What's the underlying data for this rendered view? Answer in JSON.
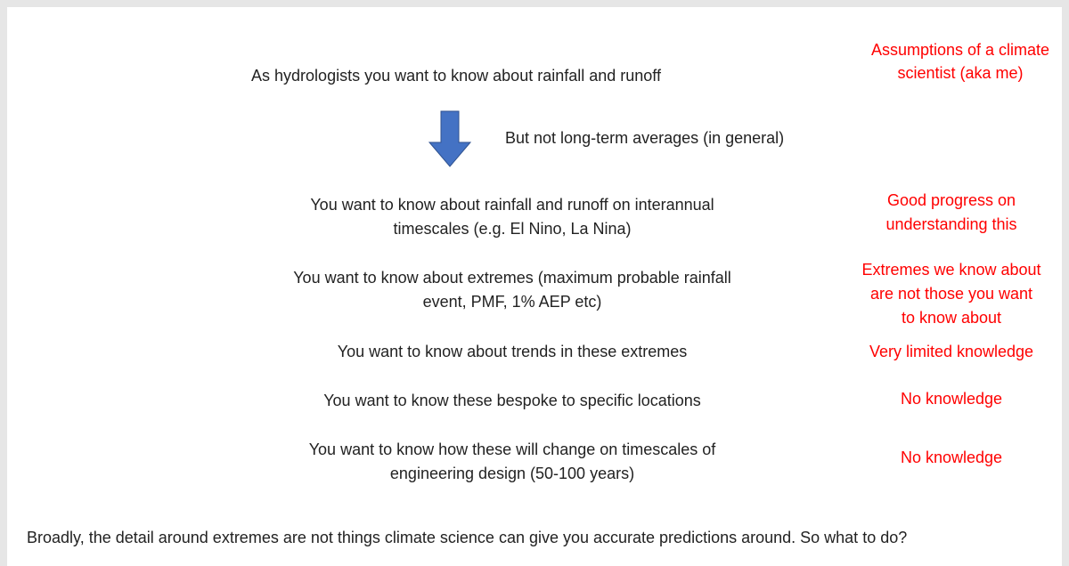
{
  "intro": "As hydrologists you want to know about rainfall and runoff",
  "assumptions_note": [
    "Assumptions of a climate",
    "scientist (aka me)"
  ],
  "arrow_note": "But not long-term averages (in general)",
  "items": [
    {
      "text": [
        "You want to know about rainfall and runoff on interannual",
        "timescales (e.g. El Nino, La Nina)"
      ],
      "note": [
        "Good progress on",
        "understanding this"
      ]
    },
    {
      "text": [
        "You want to know about extremes (maximum probable rainfall",
        "event, PMF, 1% AEP etc)"
      ],
      "note": [
        "Extremes we know about",
        "are not those you want",
        "to know about"
      ]
    },
    {
      "text": [
        "You want to know about trends in these extremes"
      ],
      "note": [
        "Very limited knowledge"
      ]
    },
    {
      "text": [
        "You want to know these bespoke to specific locations"
      ],
      "note": [
        "No knowledge"
      ]
    },
    {
      "text": [
        "You want to know how these will change on timescales of",
        "engineering design (50-100 years)"
      ],
      "note": [
        "No knowledge"
      ]
    }
  ],
  "footer": "Broadly, the detail around extremes are not things climate science can give you accurate predictions around. So what to do?"
}
